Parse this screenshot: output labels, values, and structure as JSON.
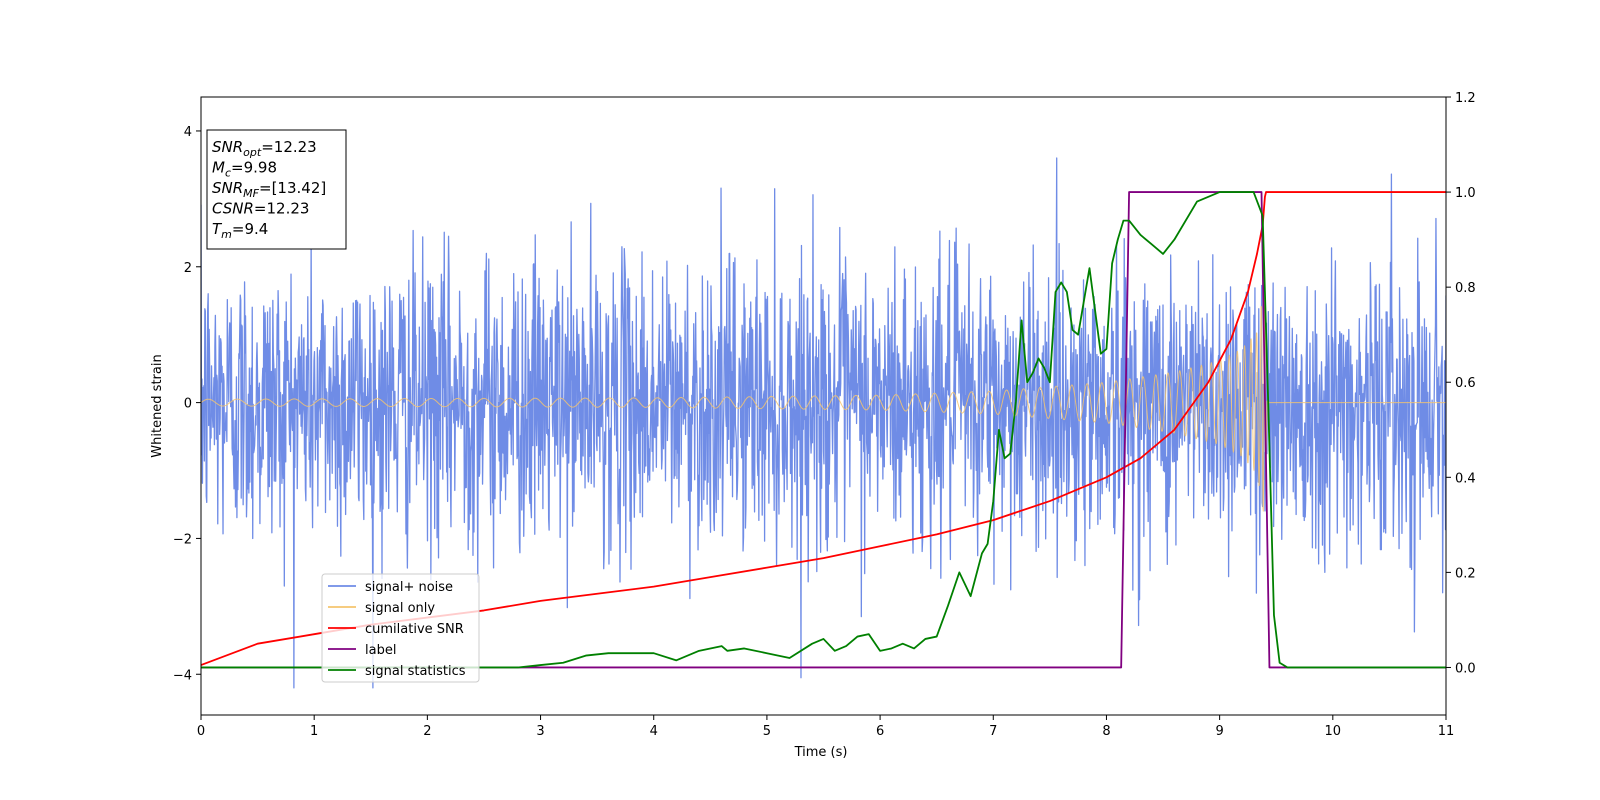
{
  "chart_data": {
    "type": "line",
    "xlabel": "Time (s)",
    "ylabel": "Whitened strain",
    "xlim": [
      0,
      11
    ],
    "ylim_left": [
      -4.6,
      4.5
    ],
    "ylim_right": [
      -0.1,
      1.2
    ],
    "x_ticks": [
      0,
      1,
      2,
      3,
      4,
      5,
      6,
      7,
      8,
      9,
      10,
      11
    ],
    "y_ticks_left": [
      -4,
      -2,
      0,
      2,
      4
    ],
    "y_ticks_right": [
      0.0,
      0.2,
      0.4,
      0.6,
      0.8,
      1.0,
      1.2
    ],
    "y_tick_labels_left": [
      "−4",
      "−2",
      "0",
      "2",
      "4"
    ],
    "y_tick_labels_right": [
      "0.0",
      "0.2",
      "0.4",
      "0.6",
      "0.8",
      "1.0",
      "1.2"
    ],
    "legend_position": "lower-left",
    "info_box": {
      "lines": [
        {
          "sym": "SNR",
          "sub": "opt",
          "val": "=12.23"
        },
        {
          "sym": "M",
          "sub": "c",
          "val": "=9.98"
        },
        {
          "sym": "SNR",
          "sub": "MF",
          "val": "=[13.42]"
        },
        {
          "sym": "CSNR",
          "sub": "",
          "val": "=12.23"
        },
        {
          "sym": "T",
          "sub": "m",
          "val": "=9.4"
        }
      ]
    },
    "series": [
      {
        "name": "signal+ noise",
        "axis": "left",
        "color": "#6f8ce6",
        "kind": "noise",
        "noise_std": 1.05,
        "extreme_range": [
          -4.2,
          4.1
        ],
        "x_range": [
          0,
          11
        ]
      },
      {
        "name": "signal only",
        "axis": "left",
        "color": "#f5c46e",
        "kind": "chirp",
        "amplitude_points": [
          [
            0,
            0.05
          ],
          [
            2,
            0.06
          ],
          [
            4,
            0.07
          ],
          [
            6,
            0.11
          ],
          [
            7,
            0.17
          ],
          [
            8,
            0.3
          ],
          [
            8.6,
            0.45
          ],
          [
            9.0,
            0.62
          ],
          [
            9.2,
            0.8
          ],
          [
            9.33,
            1.05
          ],
          [
            9.4,
            1.8
          ],
          [
            9.42,
            0.02
          ],
          [
            11,
            0.02
          ]
        ],
        "x_range": [
          0,
          11
        ]
      },
      {
        "name": "cumilative SNR",
        "axis": "right",
        "color": "#ff0000",
        "x": [
          0,
          0.5,
          1,
          1.5,
          2,
          2.5,
          3,
          3.5,
          4,
          4.5,
          5,
          5.5,
          6,
          6.5,
          7,
          7.5,
          8,
          8.3,
          8.6,
          8.9,
          9.1,
          9.25,
          9.33,
          9.38,
          9.4,
          9.41,
          11
        ],
        "values": [
          0.005,
          0.05,
          0.07,
          0.09,
          0.105,
          0.12,
          0.14,
          0.155,
          0.17,
          0.19,
          0.21,
          0.23,
          0.255,
          0.28,
          0.31,
          0.35,
          0.4,
          0.44,
          0.5,
          0.6,
          0.69,
          0.79,
          0.87,
          0.93,
          0.99,
          1.0,
          1.0
        ]
      },
      {
        "name": "label",
        "axis": "right",
        "color": "#800080",
        "x": [
          0,
          8.13,
          8.2,
          9.37,
          9.44,
          11
        ],
        "values": [
          0.0,
          0.0,
          1.0,
          1.0,
          0.0,
          0.0
        ]
      },
      {
        "name": "signal statistics",
        "axis": "right",
        "color": "#008000",
        "x": [
          0,
          1,
          2,
          2.8,
          3.0,
          3.2,
          3.4,
          3.6,
          3.8,
          4.0,
          4.2,
          4.4,
          4.6,
          4.65,
          4.8,
          5.0,
          5.2,
          5.4,
          5.5,
          5.6,
          5.7,
          5.8,
          5.9,
          6.0,
          6.1,
          6.2,
          6.3,
          6.4,
          6.5,
          6.6,
          6.7,
          6.8,
          6.9,
          6.95,
          7.0,
          7.05,
          7.1,
          7.15,
          7.2,
          7.25,
          7.3,
          7.35,
          7.4,
          7.45,
          7.5,
          7.55,
          7.6,
          7.65,
          7.7,
          7.75,
          7.8,
          7.85,
          7.9,
          7.95,
          8.0,
          8.05,
          8.1,
          8.15,
          8.2,
          8.3,
          8.4,
          8.5,
          8.6,
          8.8,
          9.0,
          9.2,
          9.3,
          9.38,
          9.43,
          9.48,
          9.53,
          9.6,
          9.7,
          10,
          11
        ],
        "values": [
          0.0,
          0.0,
          0.0,
          0.0,
          0.005,
          0.01,
          0.025,
          0.03,
          0.03,
          0.03,
          0.015,
          0.035,
          0.045,
          0.035,
          0.04,
          0.03,
          0.02,
          0.05,
          0.06,
          0.035,
          0.045,
          0.065,
          0.07,
          0.035,
          0.04,
          0.05,
          0.04,
          0.06,
          0.065,
          0.13,
          0.2,
          0.15,
          0.24,
          0.26,
          0.35,
          0.5,
          0.44,
          0.45,
          0.56,
          0.73,
          0.6,
          0.62,
          0.65,
          0.63,
          0.6,
          0.79,
          0.81,
          0.79,
          0.71,
          0.7,
          0.77,
          0.84,
          0.75,
          0.66,
          0.67,
          0.85,
          0.9,
          0.94,
          0.94,
          0.91,
          0.89,
          0.87,
          0.9,
          0.98,
          1.0,
          1.0,
          1.0,
          0.95,
          0.55,
          0.11,
          0.01,
          0.0,
          0.0,
          0.0,
          0.0
        ]
      }
    ]
  }
}
